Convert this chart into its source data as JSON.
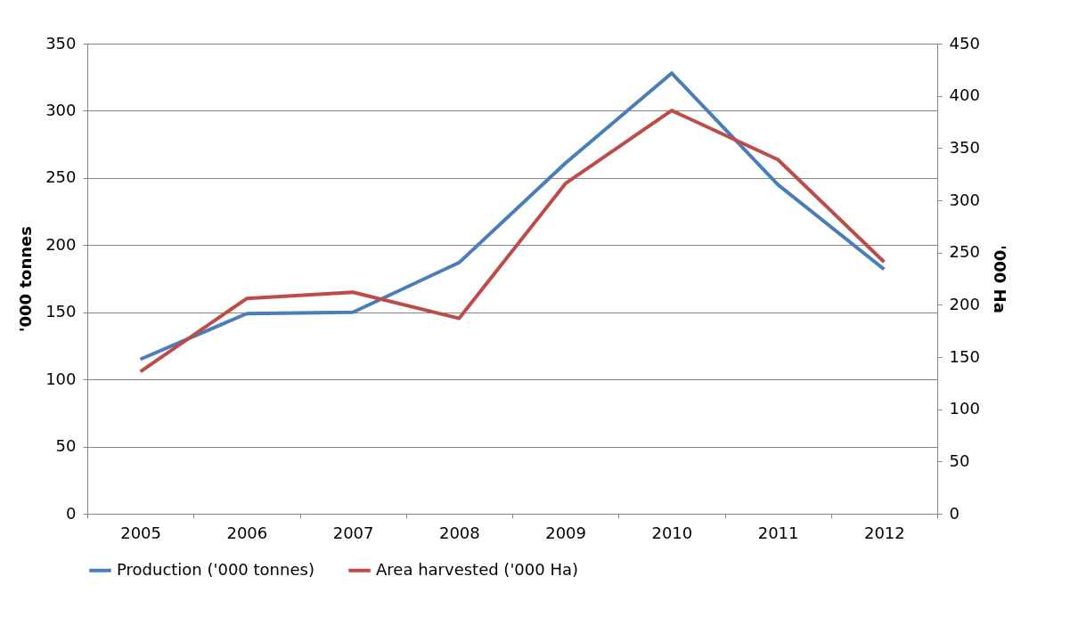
{
  "chart_data": {
    "type": "line",
    "ylabel": "'000 tonnes",
    "y2label": "'000 Ha",
    "categories": [
      "2005",
      "2006",
      "2007",
      "2008",
      "2009",
      "2010",
      "2011",
      "2012"
    ],
    "series": [
      {
        "name": "Production ('000 tonnes)",
        "color": "#4a7ebb",
        "values": [
          115,
          149,
          150,
          187,
          261,
          328,
          245,
          182
        ]
      },
      {
        "name": "Area harvested ('000 Ha)",
        "color": "#be4b48",
        "axis": "y2",
        "values": [
          136,
          206,
          212,
          187,
          316,
          386,
          339,
          241
        ]
      }
    ],
    "ylim": [
      0,
      350
    ],
    "yticks": [
      0,
      50,
      100,
      150,
      200,
      250,
      300,
      350
    ],
    "y2lim": [
      0,
      450
    ],
    "y2ticks": [
      0,
      50,
      100,
      150,
      200,
      250,
      300,
      350,
      400,
      450
    ],
    "grid": "y",
    "legend": "bottom",
    "marker": "none",
    "line_style": "solid"
  }
}
